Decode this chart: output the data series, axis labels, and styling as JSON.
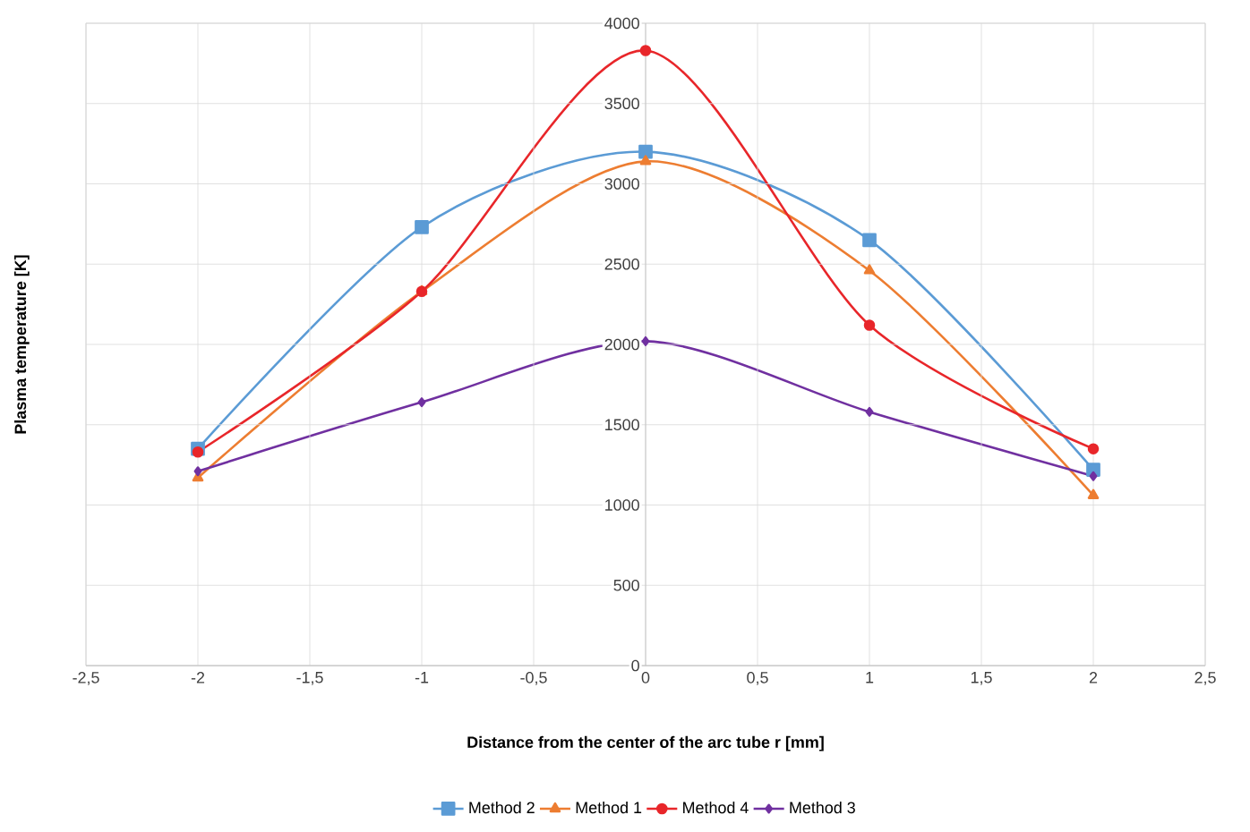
{
  "chart_data": {
    "type": "line",
    "xlabel": "Distance from the center of the arc tube r [mm]",
    "ylabel": "Plasma temperature [K]",
    "x": [
      -2,
      -1,
      0,
      1,
      2
    ],
    "series": [
      {
        "name": "Method 2",
        "color": "#5b9bd5",
        "marker": "square",
        "values": [
          1350,
          2730,
          3200,
          2650,
          1220
        ]
      },
      {
        "name": "Method 1",
        "color": "#ed7d31",
        "marker": "triangle",
        "values": [
          1170,
          2330,
          3140,
          2460,
          1060
        ]
      },
      {
        "name": "Method 4",
        "color": "#e8262a",
        "marker": "circle",
        "values": [
          1330,
          2330,
          3830,
          2120,
          1350
        ]
      },
      {
        "name": "Method 3",
        "color": "#7030a0",
        "marker": "diamond",
        "values": [
          1210,
          1640,
          2020,
          1580,
          1180
        ]
      }
    ],
    "xlim": [
      -2.5,
      2.5
    ],
    "xticks": [
      {
        "value": -2.5,
        "label": "-2,5"
      },
      -2,
      {
        "value": -1.5,
        "label": "-1,5"
      },
      -1,
      {
        "value": -0.5,
        "label": "-0,5"
      },
      0,
      {
        "value": 0.5,
        "label": "0,5"
      },
      1,
      {
        "value": 1.5,
        "label": "1,5"
      },
      2,
      {
        "value": 2.5,
        "label": "2,5"
      }
    ],
    "ylim": [
      0,
      4000
    ],
    "yticks": [
      0,
      500,
      1000,
      1500,
      2000,
      2500,
      3000,
      3500,
      4000
    ],
    "grid": true,
    "legend": "bottom",
    "line_style": "solid"
  }
}
